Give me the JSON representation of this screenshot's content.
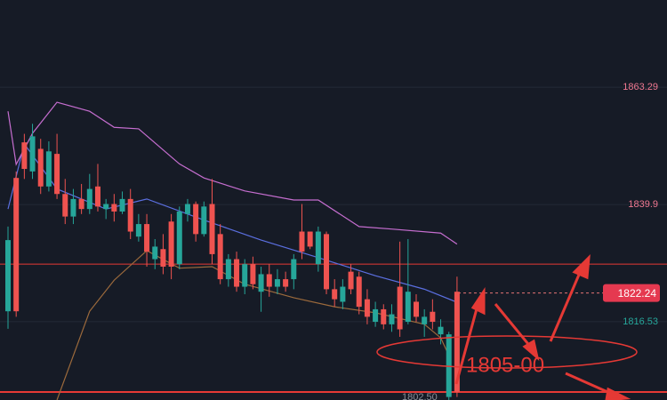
{
  "chart_data": {
    "type": "candlestick",
    "up_color": "#26a69a",
    "down_color": "#ef5350",
    "ylim": [
      1800.9,
      1880.7
    ],
    "yticks": [
      1816.53,
      1839.9,
      1863.29
    ],
    "ytick_colors": [
      "#26a69a",
      "#f07891",
      "#f07891"
    ],
    "grid": true,
    "candles": {
      "open": [
        1818.6,
        1845.2,
        1852.3,
        1846.5,
        1851.0,
        1843.5,
        1850.0,
        1842.0,
        1837.5,
        1841.0,
        1839.0,
        1843.5,
        1839.0,
        1840.0,
        1838.5,
        1841.0,
        1833.5,
        1836.0,
        1829.0,
        1831.0,
        1836.5,
        1828.0,
        1838.0,
        1840.0,
        1834.0,
        1840.0,
        1834.0,
        1825.0,
        1829.0,
        1823.5,
        1828.0,
        1822.5,
        1826.0,
        1823.5,
        1825.0,
        1825.0,
        1834.5,
        1834.5,
        1828.0,
        1834.0,
        1823.0,
        1820.5,
        1826.5,
        1825.5,
        1821.0,
        1816.5,
        1819.0,
        1816.0,
        1823.5,
        1816.5,
        1820.5,
        1816.0,
        1818.5,
        1814.0,
        1801.5,
        1822.5
      ],
      "high": [
        1835.5,
        1846.5,
        1854.0,
        1856.0,
        1853.0,
        1852.5,
        1854.0,
        1845.0,
        1843.0,
        1844.0,
        1846.0,
        1848.0,
        1841.0,
        1842.0,
        1842.5,
        1843.0,
        1838.0,
        1838.0,
        1833.0,
        1834.0,
        1838.0,
        1839.5,
        1841.0,
        1840.5,
        1840.5,
        1845.0,
        1836.0,
        1830.0,
        1830.5,
        1829.0,
        1829.5,
        1827.5,
        1828.0,
        1827.0,
        1826.5,
        1830.0,
        1840.0,
        1834.5,
        1835.5,
        1834.5,
        1825.0,
        1825.0,
        1828.0,
        1826.5,
        1823.0,
        1820.5,
        1820.0,
        1820.0,
        1832.5,
        1833.0,
        1822.0,
        1819.0,
        1821.0,
        1817.0,
        1814.5,
        1825.5
      ],
      "low": [
        1815.1,
        1817.5,
        1845.0,
        1845.0,
        1842.0,
        1842.5,
        1841.0,
        1836.0,
        1836.0,
        1838.0,
        1838.0,
        1838.5,
        1837.0,
        1836.5,
        1838.0,
        1833.0,
        1832.5,
        1827.5,
        1827.0,
        1826.0,
        1825.0,
        1827.0,
        1836.5,
        1832.5,
        1833.5,
        1828.0,
        1824.0,
        1823.5,
        1822.5,
        1822.0,
        1823.0,
        1818.5,
        1821.5,
        1822.0,
        1822.5,
        1823.0,
        1829.0,
        1831.0,
        1826.5,
        1822.0,
        1819.5,
        1819.0,
        1822.0,
        1818.0,
        1816.0,
        1815.5,
        1815.0,
        1814.5,
        1813.5,
        1816.0,
        1816.5,
        1813.5,
        1815.0,
        1812.0,
        1800.9,
        1801.5
      ],
      "close": [
        1832.8,
        1818.6,
        1847.0,
        1853.5,
        1843.5,
        1850.5,
        1842.0,
        1837.5,
        1841.0,
        1839.0,
        1843.0,
        1839.5,
        1840.0,
        1838.5,
        1841.0,
        1834.5,
        1836.0,
        1830.5,
        1831.5,
        1827.5,
        1827.5,
        1838.5,
        1840.0,
        1834.0,
        1839.5,
        1830.0,
        1825.0,
        1829.0,
        1823.5,
        1828.0,
        1824.0,
        1826.0,
        1823.5,
        1825.0,
        1823.5,
        1829.0,
        1830.5,
        1831.5,
        1834.5,
        1823.0,
        1821.0,
        1823.5,
        1823.0,
        1819.5,
        1817.5,
        1819.0,
        1816.0,
        1818.0,
        1815.0,
        1822.5,
        1817.5,
        1817.5,
        1816.5,
        1815.5,
        1814.0,
        1802.5
      ]
    },
    "lines": [
      {
        "color": "#5b6fe0",
        "x": [
          0,
          2,
          6,
          12,
          17,
          24,
          31,
          38,
          45,
          51,
          55
        ],
        "values": [
          1839.0,
          1852.0,
          1843.0,
          1839.0,
          1841.0,
          1836.8,
          1832.8,
          1829.3,
          1825.7,
          1823.0,
          1820.4
        ]
      },
      {
        "color": "#c66ed0",
        "x": [
          0,
          1,
          3,
          6,
          10,
          13,
          16,
          21,
          24,
          29,
          35,
          38,
          43,
          47,
          53,
          55
        ],
        "values": [
          1858.5,
          1847.9,
          1854.1,
          1860.3,
          1858.5,
          1855.3,
          1855.0,
          1848.0,
          1845.2,
          1842.6,
          1840.8,
          1840.8,
          1835.5,
          1835.0,
          1834.2,
          1832.0
        ]
      },
      {
        "color": "#9c6a3c",
        "x": [
          6,
          10,
          13,
          17,
          21,
          25,
          29,
          35,
          40,
          45,
          51,
          53,
          54
        ],
        "values": [
          1800.9,
          1818.6,
          1824.8,
          1830.7,
          1827.2,
          1827.5,
          1824.0,
          1821.3,
          1819.5,
          1818.3,
          1816.0,
          1813.3,
          1809.8
        ]
      }
    ],
    "price_lines": [
      {
        "value": 1828.0
      },
      {
        "value": 1802.5,
        "label": "1802.50"
      }
    ],
    "last_price": 1822.24,
    "annotation": "1805-00"
  }
}
